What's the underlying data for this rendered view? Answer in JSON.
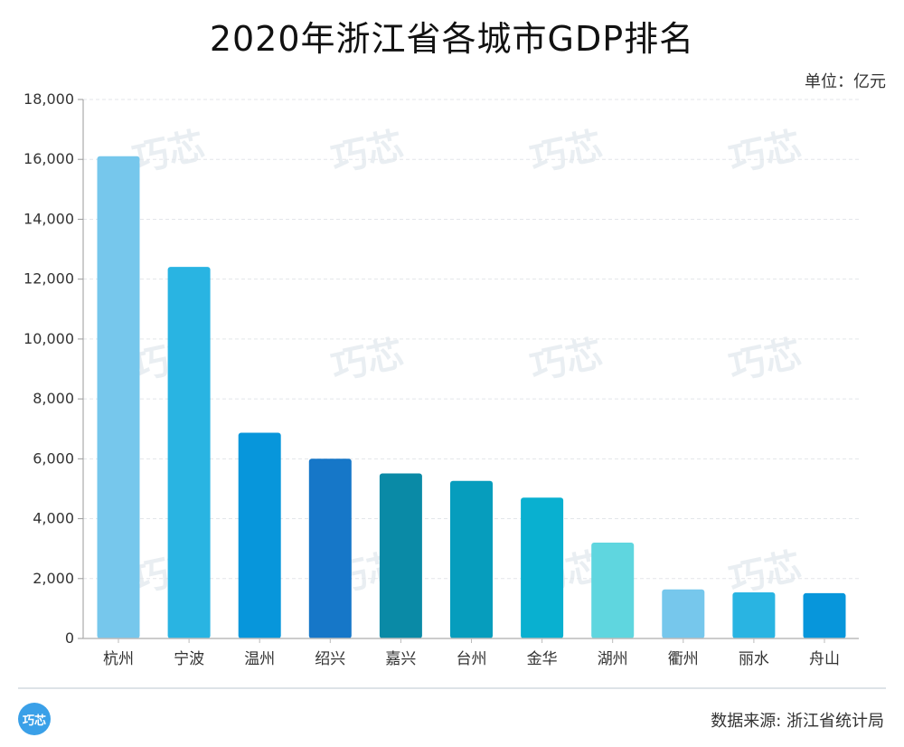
{
  "header": {
    "title": "2020年浙江省各城市GDP排名",
    "unit": "单位：亿元"
  },
  "footer": {
    "logo_text": "巧芯",
    "source": "数据来源: 浙江省统计局"
  },
  "watermark": "巧芯",
  "chart_data": {
    "type": "bar",
    "title": "2020年浙江省各城市GDP排名",
    "xlabel": "",
    "ylabel": "",
    "unit": "单位：亿元",
    "categories": [
      "杭州",
      "宁波",
      "温州",
      "绍兴",
      "嘉兴",
      "台州",
      "金华",
      "湖州",
      "衢州",
      "丽水",
      "舟山"
    ],
    "values": [
      16106,
      12409,
      6871,
      6001,
      5510,
      5263,
      4704,
      3201,
      1639,
      1540,
      1512
    ],
    "colors": [
      "#76c7ec",
      "#29b4e2",
      "#0796db",
      "#1677c8",
      "#0a8aa6",
      "#069dbd",
      "#09b0d0",
      "#5fd6df",
      "#76c7ec",
      "#29b4e2",
      "#0796db"
    ],
    "ylim": [
      0,
      18000
    ],
    "yticks": [
      0,
      2000,
      4000,
      6000,
      8000,
      10000,
      12000,
      14000,
      16000,
      18000
    ],
    "ytick_labels": [
      "0",
      "2,000",
      "4,000",
      "6,000",
      "8,000",
      "10,000",
      "12,000",
      "14,000",
      "16,000",
      "18,000"
    ],
    "grid": true,
    "legend": "none"
  }
}
